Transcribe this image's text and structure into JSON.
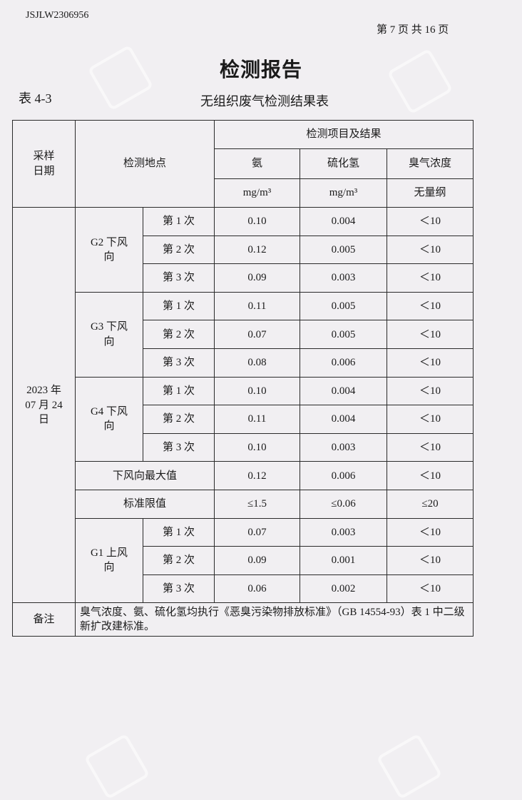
{
  "header": {
    "doc_id": "JSJLW2306956",
    "page_info": "第 7 页 共 16 页",
    "title": "检测报告"
  },
  "table_number": "表 4-3",
  "table_title": "无组织废气检测结果表",
  "columns": {
    "date": "采样日期",
    "location": "检测地点",
    "group": "检测项目及结果",
    "items": [
      {
        "name": "氨",
        "unit": "mg/m³"
      },
      {
        "name": "硫化氢",
        "unit": "mg/m³"
      },
      {
        "name": "臭气浓度",
        "unit": "无量纲"
      }
    ]
  },
  "date": "2023 年 07 月 24 日",
  "groups": [
    {
      "point": "G2 下风向",
      "rows": [
        {
          "trial": "第 1 次",
          "values": [
            "0.10",
            "0.004",
            "＜10"
          ]
        },
        {
          "trial": "第 2 次",
          "values": [
            "0.12",
            "0.005",
            "＜10"
          ]
        },
        {
          "trial": "第 3 次",
          "values": [
            "0.09",
            "0.003",
            "＜10"
          ]
        }
      ]
    },
    {
      "point": "G3 下风向",
      "rows": [
        {
          "trial": "第 1 次",
          "values": [
            "0.11",
            "0.005",
            "＜10"
          ]
        },
        {
          "trial": "第 2 次",
          "values": [
            "0.07",
            "0.005",
            "＜10"
          ]
        },
        {
          "trial": "第 3 次",
          "values": [
            "0.08",
            "0.006",
            "＜10"
          ]
        }
      ]
    },
    {
      "point": "G4 下风向",
      "rows": [
        {
          "trial": "第 1 次",
          "values": [
            "0.10",
            "0.004",
            "＜10"
          ]
        },
        {
          "trial": "第 2 次",
          "values": [
            "0.11",
            "0.004",
            "＜10"
          ]
        },
        {
          "trial": "第 3 次",
          "values": [
            "0.10",
            "0.003",
            "＜10"
          ]
        }
      ]
    }
  ],
  "max_row": {
    "label": "下风向最大值",
    "values": [
      "0.12",
      "0.006",
      "＜10"
    ]
  },
  "limit_row": {
    "label": "标准限值",
    "values": [
      "≤1.5",
      "≤0.06",
      "≤20"
    ]
  },
  "upwind": {
    "point": "G1 上风向",
    "rows": [
      {
        "trial": "第 1 次",
        "values": [
          "0.07",
          "0.003",
          "＜10"
        ]
      },
      {
        "trial": "第 2 次",
        "values": [
          "0.09",
          "0.001",
          "＜10"
        ]
      },
      {
        "trial": "第 3 次",
        "values": [
          "0.06",
          "0.002",
          "＜10"
        ]
      }
    ]
  },
  "note": {
    "label": "备注",
    "text": "臭气浓度、氨、硫化氢均执行《恶臭污染物排放标准》（GB 14554-93）表 1 中二级新扩改建标准。"
  }
}
